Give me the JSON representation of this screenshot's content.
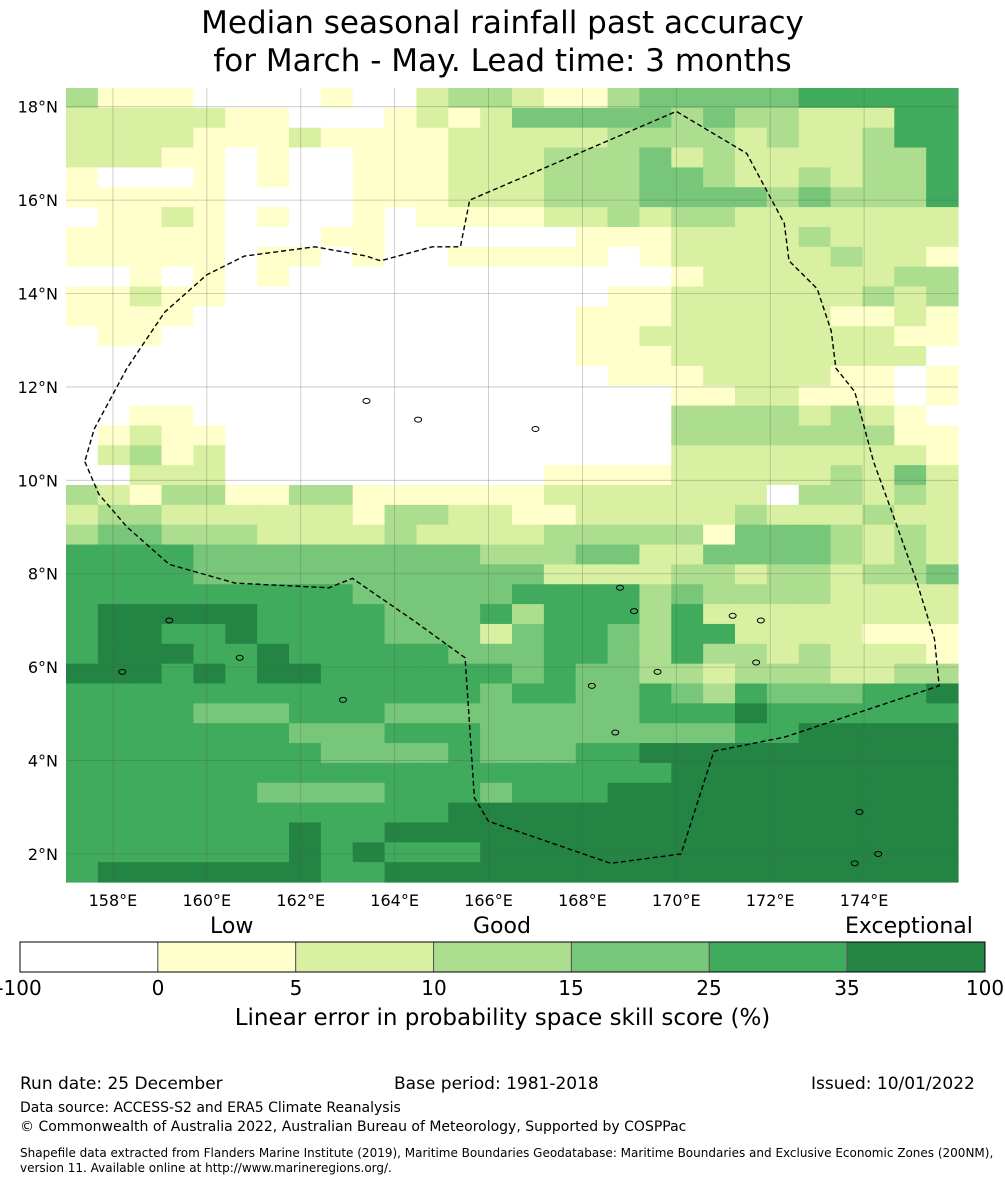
{
  "title": {
    "line1": "Median seasonal rainfall past accuracy",
    "line2": "for March - May. Lead time: 3 months"
  },
  "map": {
    "lat_range": [
      1.4,
      18.4
    ],
    "lon_range": [
      157.0,
      176.0
    ],
    "lat_ticks": [
      "18°N",
      "16°N",
      "14°N",
      "12°N",
      "10°N",
      "8°N",
      "6°N",
      "4°N",
      "2°N"
    ],
    "lon_ticks": [
      "158°E",
      "160°E",
      "162°E",
      "164°E",
      "166°E",
      "168°E",
      "170°E",
      "172°E",
      "174°E"
    ],
    "eez_boundary": [
      [
        157.4,
        10.4
      ],
      [
        157.7,
        9.7
      ],
      [
        158.3,
        9.0
      ],
      [
        159.2,
        8.2
      ],
      [
        160.6,
        7.8
      ],
      [
        162.6,
        7.7
      ],
      [
        163.1,
        7.9
      ],
      [
        164.4,
        7.0
      ],
      [
        165.5,
        6.2
      ],
      [
        165.7,
        3.2
      ],
      [
        166.0,
        2.7
      ],
      [
        168.6,
        1.8
      ],
      [
        170.1,
        2.0
      ],
      [
        170.8,
        4.2
      ],
      [
        172.3,
        4.5
      ],
      [
        175.6,
        5.6
      ],
      [
        175.5,
        6.6
      ],
      [
        175.1,
        7.9
      ],
      [
        174.6,
        9.3
      ],
      [
        174.2,
        10.4
      ],
      [
        173.8,
        11.9
      ],
      [
        173.4,
        12.4
      ],
      [
        173.3,
        13.2
      ],
      [
        173.0,
        14.1
      ],
      [
        172.4,
        14.7
      ],
      [
        172.3,
        15.5
      ],
      [
        171.5,
        17.0
      ],
      [
        170.0,
        17.9
      ],
      [
        165.6,
        16.0
      ],
      [
        165.4,
        15.0
      ],
      [
        164.8,
        15.0
      ],
      [
        163.7,
        14.7
      ],
      [
        163.4,
        14.8
      ],
      [
        162.3,
        15.0
      ],
      [
        160.8,
        14.8
      ],
      [
        160.0,
        14.4
      ],
      [
        159.1,
        13.6
      ],
      [
        158.3,
        12.4
      ],
      [
        157.6,
        11.1
      ]
    ]
  },
  "colorbar": {
    "category_labels": {
      "low": "Low",
      "good": "Good",
      "exceptional": "Exceptional"
    },
    "ticks": [
      "-100",
      "0",
      "5",
      "10",
      "15",
      "25",
      "35",
      "100"
    ],
    "colors": [
      "#ffffff",
      "#ffffcc",
      "#d9f0a3",
      "#addd8e",
      "#78c679",
      "#41ab5d",
      "#238443"
    ],
    "xlabel": "Linear error in probability space skill score (%)"
  },
  "footer": {
    "run_date": "Run date: 25 December",
    "base_period": "Base period: 1981-2018",
    "issued": "Issued: 10/01/2022",
    "data_source": "Data source: ACCESS-S2 and ERA5 Climate Reanalysis",
    "copyright": "© Commonwealth of Australia 2022, Australian Bureau of Meteorology, Supported by COSPPac",
    "shapefile_line1": "Shapefile data extracted from Flanders Marine Institute (2019), Maritime Boundaries Geodatabase: Maritime Boundaries and Exclusive Economic Zones (200NM),",
    "shapefile_line2": "version 11. Available online at http://www.marineregions.org/."
  }
}
